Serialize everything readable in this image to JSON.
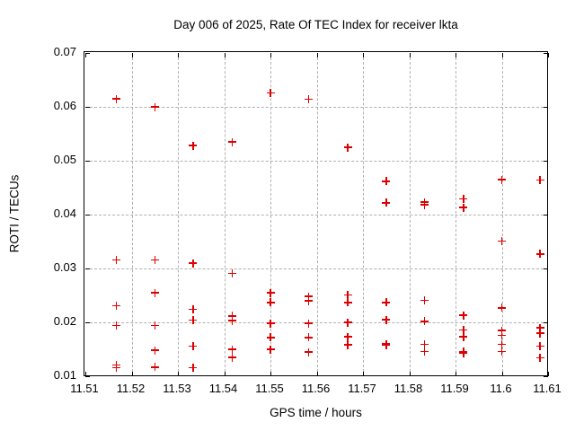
{
  "title": "Day 006 of 2025, Rate Of TEC Index for receiver lkta",
  "chart_data": {
    "type": "scatter",
    "title": "Day 006 of 2025, Rate Of TEC Index for receiver lkta",
    "xlabel": "GPS time / hours",
    "ylabel": "ROTI / TECUs",
    "xlim": [
      11.51,
      11.61
    ],
    "ylim": [
      0.01,
      0.07
    ],
    "xtick_values": [
      11.51,
      11.52,
      11.53,
      11.54,
      11.55,
      11.56,
      11.57,
      11.58,
      11.59,
      11.6,
      11.61
    ],
    "xtick_labels": [
      "11.51",
      "11.52",
      "11.53",
      "11.54",
      "11.55",
      "11.56",
      "11.57",
      "11.58",
      "11.59",
      "11.6",
      "11.61"
    ],
    "ytick_values": [
      0.01,
      0.02,
      0.03,
      0.04,
      0.05,
      0.06,
      0.07
    ],
    "ytick_labels": [
      "0.01",
      "0.02",
      "0.03",
      "0.04",
      "0.05",
      "0.06",
      "0.07"
    ],
    "grid": true,
    "legend_position": "none",
    "marker": "plus",
    "marker_color": "#dd0000",
    "grid_color": "#b0b0b0",
    "series": [
      {
        "name": "ROTI",
        "points": [
          [
            11.5167,
            0.0615
          ],
          [
            11.5167,
            0.0316
          ],
          [
            11.5167,
            0.0231
          ],
          [
            11.5167,
            0.0194
          ],
          [
            11.5167,
            0.0121
          ],
          [
            11.5167,
            0.0116
          ],
          [
            11.525,
            0.06
          ],
          [
            11.525,
            0.0316
          ],
          [
            11.525,
            0.0255
          ],
          [
            11.525,
            0.0194
          ],
          [
            11.525,
            0.0148
          ],
          [
            11.525,
            0.0117
          ],
          [
            11.5333,
            0.0528
          ],
          [
            11.5333,
            0.031
          ],
          [
            11.5333,
            0.0224
          ],
          [
            11.5333,
            0.0204
          ],
          [
            11.5333,
            0.0156
          ],
          [
            11.5333,
            0.0116
          ],
          [
            11.5417,
            0.0535
          ],
          [
            11.5417,
            0.0291
          ],
          [
            11.5417,
            0.0212
          ],
          [
            11.5417,
            0.0203
          ],
          [
            11.5417,
            0.015
          ],
          [
            11.5417,
            0.0135
          ],
          [
            11.55,
            0.0626
          ],
          [
            11.55,
            0.0255
          ],
          [
            11.55,
            0.0237
          ],
          [
            11.55,
            0.0198
          ],
          [
            11.55,
            0.0172
          ],
          [
            11.55,
            0.015
          ],
          [
            11.5583,
            0.0614
          ],
          [
            11.5583,
            0.0248
          ],
          [
            11.5583,
            0.024
          ],
          [
            11.5583,
            0.0198
          ],
          [
            11.5583,
            0.0172
          ],
          [
            11.5583,
            0.0145
          ],
          [
            11.5667,
            0.0525
          ],
          [
            11.5667,
            0.0251
          ],
          [
            11.5667,
            0.0237
          ],
          [
            11.5667,
            0.02
          ],
          [
            11.5667,
            0.0173
          ],
          [
            11.5667,
            0.0158
          ],
          [
            11.575,
            0.0462
          ],
          [
            11.575,
            0.0422
          ],
          [
            11.575,
            0.0237
          ],
          [
            11.575,
            0.0205
          ],
          [
            11.575,
            0.016
          ],
          [
            11.575,
            0.0158
          ],
          [
            11.5833,
            0.0423
          ],
          [
            11.5833,
            0.0418
          ],
          [
            11.5833,
            0.0241
          ],
          [
            11.5833,
            0.0202
          ],
          [
            11.5833,
            0.0159
          ],
          [
            11.5833,
            0.0146
          ],
          [
            11.5917,
            0.0429
          ],
          [
            11.5917,
            0.0413
          ],
          [
            11.5917,
            0.0213
          ],
          [
            11.5917,
            0.0186
          ],
          [
            11.5917,
            0.0173
          ],
          [
            11.5917,
            0.0146
          ],
          [
            11.5917,
            0.0143
          ],
          [
            11.6,
            0.0465
          ],
          [
            11.6,
            0.0351
          ],
          [
            11.6,
            0.0227
          ],
          [
            11.6,
            0.0185
          ],
          [
            11.6,
            0.0176
          ],
          [
            11.6,
            0.0159
          ],
          [
            11.6,
            0.0146
          ],
          [
            11.6083,
            0.0464
          ],
          [
            11.6083,
            0.0327
          ],
          [
            11.6083,
            0.019
          ],
          [
            11.6083,
            0.018
          ],
          [
            11.6083,
            0.0156
          ],
          [
            11.6083,
            0.0134
          ]
        ]
      }
    ]
  }
}
